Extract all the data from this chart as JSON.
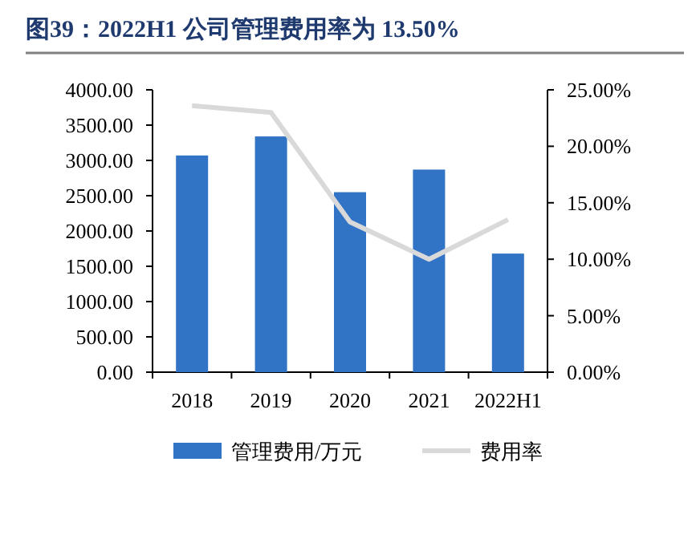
{
  "chart_data": {
    "type": "bar",
    "title": "图39：2022H1 公司管理费用率为 13.50%",
    "categories": [
      "2018",
      "2019",
      "2020",
      "2021",
      "2022H1"
    ],
    "series": [
      {
        "name": "管理费用/万元",
        "color": "#3174c6",
        "values": [
          3070,
          3340,
          2550,
          2870,
          1680
        ]
      },
      {
        "name": "费用率",
        "type": "line",
        "axis": "y2",
        "color": "#d9d9d9",
        "values": [
          23.6,
          23.0,
          13.3,
          10.0,
          13.5
        ]
      }
    ],
    "ylim": [
      0,
      4000
    ],
    "yticks": [
      {
        "value": 0,
        "label": "0.00"
      },
      {
        "value": 500,
        "label": "500.00"
      },
      {
        "value": 1000,
        "label": "1000.00"
      },
      {
        "value": 1500,
        "label": "1500.00"
      },
      {
        "value": 2000,
        "label": "2000.00"
      },
      {
        "value": 2500,
        "label": "2500.00"
      },
      {
        "value": 3000,
        "label": "3000.00"
      },
      {
        "value": 3500,
        "label": "3500.00"
      },
      {
        "value": 4000,
        "label": "4000.00"
      }
    ],
    "y2lim": [
      0,
      25
    ],
    "y2ticks": [
      {
        "value": 0,
        "label": "0.00%"
      },
      {
        "value": 5,
        "label": "5.00%"
      },
      {
        "value": 10,
        "label": "10.00%"
      },
      {
        "value": 15,
        "label": "15.00%"
      },
      {
        "value": 20,
        "label": "20.00%"
      },
      {
        "value": 25,
        "label": "25.00%"
      }
    ],
    "grid": false,
    "legend": "bottom"
  }
}
